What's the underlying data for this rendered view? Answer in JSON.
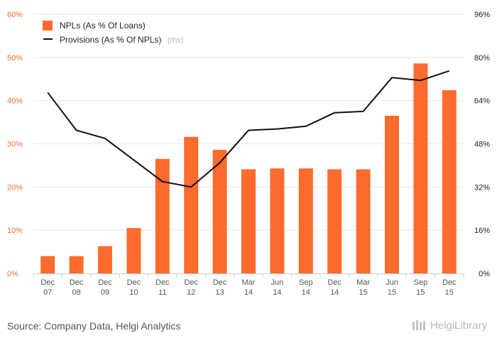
{
  "chart_data": {
    "type": "bar",
    "categories": [
      [
        "Dec",
        "07"
      ],
      [
        "Dec",
        "08"
      ],
      [
        "Dec",
        "09"
      ],
      [
        "Dec",
        "10"
      ],
      [
        "Dec",
        "11"
      ],
      [
        "Dec",
        "12"
      ],
      [
        "Dec",
        "13"
      ],
      [
        "Mar",
        "14"
      ],
      [
        "Jun",
        "14"
      ],
      [
        "Sep",
        "14"
      ],
      [
        "Dec",
        "14"
      ],
      [
        "Mar",
        "15"
      ],
      [
        "Jun",
        "15"
      ],
      [
        "Sep",
        "15"
      ],
      [
        "Dec",
        "15"
      ]
    ],
    "series": [
      {
        "name": "NPLs (As % Of Loans)",
        "type": "bar",
        "axis": "left",
        "values": [
          4.0,
          4.0,
          6.3,
          10.5,
          26.5,
          31.6,
          28.6,
          24.1,
          24.3,
          24.3,
          24.1,
          24.1,
          36.5,
          48.6,
          42.4
        ]
      },
      {
        "name": "Provisions (As % Of NPLs)",
        "note": "(rhs)",
        "type": "line",
        "axis": "right",
        "values": [
          67,
          53,
          50,
          42,
          34,
          32,
          41,
          53,
          53.5,
          54.5,
          59.5,
          60,
          72.5,
          71.5,
          75
        ]
      }
    ],
    "yleft": {
      "lim": [
        0,
        60
      ],
      "ticks": [
        "0%",
        "10%",
        "20%",
        "30%",
        "40%",
        "50%",
        "60%"
      ]
    },
    "yright": {
      "lim": [
        0,
        96
      ],
      "ticks": [
        "0%",
        "16%",
        "32%",
        "48%",
        "64%",
        "80%",
        "96%"
      ]
    },
    "colors": {
      "bar": "#ff6b2c",
      "line": "#111111",
      "left_axis": "#ef6d30",
      "grid": "#e6e6e6"
    },
    "grid": true,
    "legend": "top-left"
  },
  "footer": {
    "source": "Source: Company Data, Helgi Analytics",
    "logo_text": "HelgiLibrary"
  }
}
